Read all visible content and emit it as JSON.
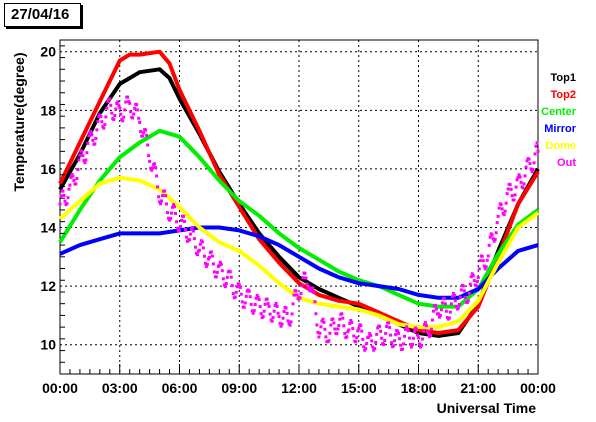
{
  "date_label": "27/04/16",
  "chart_data": {
    "type": "line",
    "title": "",
    "xlabel": "Universal Time",
    "ylabel": "Temperature(degree)",
    "xlim": [
      0,
      24
    ],
    "ylim": [
      9,
      20.4
    ],
    "x_ticks": [
      0,
      3,
      6,
      9,
      12,
      15,
      18,
      21,
      24
    ],
    "x_tick_labels": [
      "00:00",
      "03:00",
      "06:00",
      "09:00",
      "12:00",
      "15:00",
      "18:00",
      "21:00",
      "00:00"
    ],
    "y_ticks": [
      10,
      12,
      14,
      16,
      18,
      20
    ],
    "y_tick_labels": [
      "10",
      "12",
      "14",
      "16",
      "18",
      "20"
    ],
    "grid": true,
    "legend_position": "right",
    "series": [
      {
        "name": "Top1",
        "color": "#000000",
        "points": [
          [
            0,
            15.3
          ],
          [
            1,
            16.5
          ],
          [
            2,
            17.9
          ],
          [
            3,
            18.9
          ],
          [
            4,
            19.3
          ],
          [
            5,
            19.4
          ],
          [
            5.5,
            19.1
          ],
          [
            6,
            18.4
          ],
          [
            7,
            17.2
          ],
          [
            8,
            15.9
          ],
          [
            9,
            14.8
          ],
          [
            10,
            13.8
          ],
          [
            11,
            13.0
          ],
          [
            12,
            12.3
          ],
          [
            13,
            11.9
          ],
          [
            14,
            11.6
          ],
          [
            15,
            11.3
          ],
          [
            16,
            11.0
          ],
          [
            17,
            10.7
          ],
          [
            18,
            10.4
          ],
          [
            19,
            10.3
          ],
          [
            20,
            10.4
          ],
          [
            21,
            11.4
          ],
          [
            22,
            13.2
          ],
          [
            23,
            14.8
          ],
          [
            24,
            16.0
          ]
        ]
      },
      {
        "name": "Top2",
        "color": "#ff0000",
        "points": [
          [
            0,
            15.5
          ],
          [
            1,
            16.9
          ],
          [
            2,
            18.3
          ],
          [
            3,
            19.7
          ],
          [
            3.5,
            19.9
          ],
          [
            4,
            19.9
          ],
          [
            5,
            20.0
          ],
          [
            5.5,
            19.6
          ],
          [
            6,
            18.7
          ],
          [
            7,
            17.3
          ],
          [
            8,
            15.8
          ],
          [
            9,
            14.7
          ],
          [
            10,
            13.6
          ],
          [
            11,
            12.8
          ],
          [
            12,
            12.1
          ],
          [
            13,
            11.7
          ],
          [
            14,
            11.5
          ],
          [
            15,
            11.4
          ],
          [
            16,
            11.1
          ],
          [
            17,
            10.8
          ],
          [
            18,
            10.5
          ],
          [
            19,
            10.4
          ],
          [
            20,
            10.5
          ],
          [
            21,
            11.3
          ],
          [
            22,
            13.0
          ],
          [
            23,
            14.8
          ],
          [
            24,
            15.9
          ]
        ]
      },
      {
        "name": "Center",
        "color": "#00ee00",
        "points": [
          [
            0,
            13.5
          ],
          [
            1,
            14.6
          ],
          [
            2,
            15.6
          ],
          [
            3,
            16.4
          ],
          [
            4,
            16.9
          ],
          [
            5,
            17.3
          ],
          [
            6,
            17.1
          ],
          [
            7,
            16.4
          ],
          [
            8,
            15.6
          ],
          [
            9,
            14.9
          ],
          [
            10,
            14.4
          ],
          [
            11,
            13.8
          ],
          [
            12,
            13.3
          ],
          [
            13,
            12.9
          ],
          [
            14,
            12.5
          ],
          [
            15,
            12.2
          ],
          [
            16,
            12.0
          ],
          [
            17,
            11.7
          ],
          [
            18,
            11.4
          ],
          [
            19,
            11.3
          ],
          [
            20,
            11.3
          ],
          [
            21,
            11.9
          ],
          [
            22,
            13.1
          ],
          [
            23,
            14.1
          ],
          [
            24,
            14.6
          ]
        ]
      },
      {
        "name": "Mirror",
        "color": "#0000ff",
        "points": [
          [
            0,
            13.1
          ],
          [
            1,
            13.4
          ],
          [
            2,
            13.6
          ],
          [
            3,
            13.8
          ],
          [
            4,
            13.8
          ],
          [
            5,
            13.8
          ],
          [
            6,
            13.9
          ],
          [
            7,
            14.0
          ],
          [
            8,
            14.0
          ],
          [
            9,
            13.9
          ],
          [
            10,
            13.7
          ],
          [
            11,
            13.4
          ],
          [
            12,
            13.0
          ],
          [
            13,
            12.6
          ],
          [
            14,
            12.3
          ],
          [
            15,
            12.1
          ],
          [
            16,
            12.0
          ],
          [
            17,
            11.9
          ],
          [
            18,
            11.7
          ],
          [
            19,
            11.6
          ],
          [
            20,
            11.6
          ],
          [
            21,
            11.9
          ],
          [
            22,
            12.6
          ],
          [
            23,
            13.2
          ],
          [
            24,
            13.4
          ]
        ]
      },
      {
        "name": "Dome",
        "color": "#ffff00",
        "points": [
          [
            0,
            14.3
          ],
          [
            1,
            14.9
          ],
          [
            2,
            15.5
          ],
          [
            3,
            15.7
          ],
          [
            4,
            15.6
          ],
          [
            5,
            15.3
          ],
          [
            6,
            14.7
          ],
          [
            7,
            14.0
          ],
          [
            8,
            13.5
          ],
          [
            9,
            13.2
          ],
          [
            10,
            12.7
          ],
          [
            11,
            12.1
          ],
          [
            12,
            11.6
          ],
          [
            13,
            11.4
          ],
          [
            14,
            11.3
          ],
          [
            15,
            11.2
          ],
          [
            16,
            11.0
          ],
          [
            17,
            10.7
          ],
          [
            18,
            10.6
          ],
          [
            19,
            10.6
          ],
          [
            20,
            10.8
          ],
          [
            21,
            11.5
          ],
          [
            22,
            12.8
          ],
          [
            23,
            14.0
          ],
          [
            24,
            14.5
          ]
        ]
      },
      {
        "name": "Out",
        "color": "#ff00ff",
        "marker": "scatter",
        "points": [
          [
            0,
            14.8
          ],
          [
            0.5,
            15.3
          ],
          [
            1,
            16.2
          ],
          [
            1.5,
            16.9
          ],
          [
            2,
            17.5
          ],
          [
            2.5,
            18.1
          ],
          [
            3,
            17.9
          ],
          [
            3.5,
            18.2
          ],
          [
            4,
            17.7
          ],
          [
            4.5,
            16.5
          ],
          [
            5,
            15.2
          ],
          [
            5.5,
            14.6
          ],
          [
            6,
            14.2
          ],
          [
            6.5,
            13.8
          ],
          [
            7,
            13.3
          ],
          [
            7.5,
            12.9
          ],
          [
            8,
            12.5
          ],
          [
            8.5,
            12.2
          ],
          [
            9,
            11.7
          ],
          [
            9.5,
            11.5
          ],
          [
            10,
            11.3
          ],
          [
            10.5,
            11.2
          ],
          [
            11,
            11.0
          ],
          [
            11.5,
            10.9
          ],
          [
            12,
            11.9
          ],
          [
            12.5,
            12.3
          ],
          [
            13,
            10.6
          ],
          [
            13.5,
            10.4
          ],
          [
            14,
            10.8
          ],
          [
            14.5,
            10.5
          ],
          [
            15,
            10.4
          ],
          [
            15.5,
            10.0
          ],
          [
            16,
            10.3
          ],
          [
            16.5,
            10.4
          ],
          [
            17,
            10.1
          ],
          [
            17.5,
            10.3
          ],
          [
            18,
            10.2
          ],
          [
            18.5,
            10.5
          ],
          [
            19,
            11.3
          ],
          [
            19.5,
            11.2
          ],
          [
            20,
            11.6
          ],
          [
            20.5,
            11.8
          ],
          [
            21,
            12.5
          ],
          [
            21.5,
            13.1
          ],
          [
            22,
            14.3
          ],
          [
            22.5,
            15.1
          ],
          [
            23,
            15.4
          ],
          [
            23.5,
            16.0
          ],
          [
            24,
            16.6
          ]
        ]
      }
    ]
  }
}
